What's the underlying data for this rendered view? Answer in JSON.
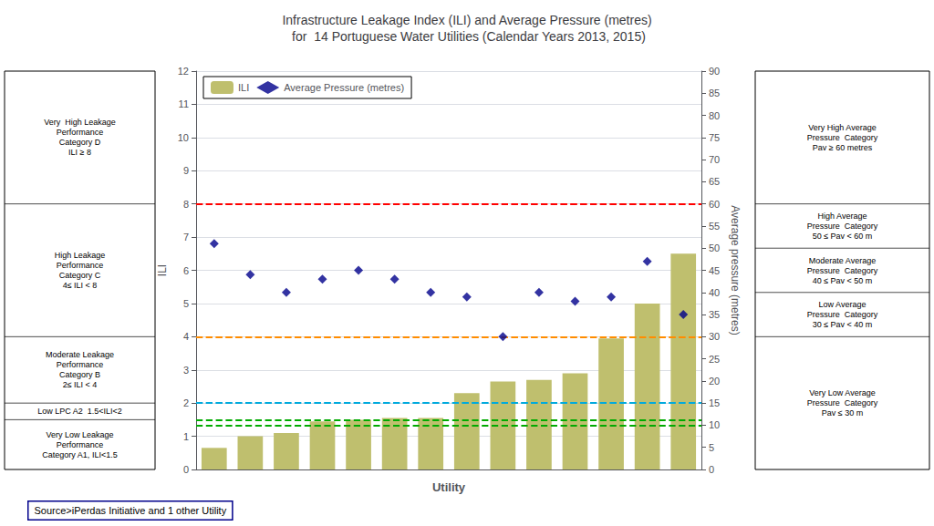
{
  "chart_data": {
    "type": "bar",
    "title": "Infrastructure Leakage Index (ILI) and Average Pressure (metres)\n for  14 Portuguese Water Utilities (Calendar Years 2013, 2015)",
    "x_label": "Utility",
    "y_label": "ILI",
    "y2_label": "Average pressure (metres)",
    "categories": [
      null,
      null,
      null,
      null,
      null,
      null,
      null,
      null,
      null,
      null,
      null,
      null,
      null,
      null
    ],
    "series": [
      {
        "name": "ILI",
        "type": "bar",
        "color": "#bfbf6e",
        "values": [
          0.65,
          1.0,
          1.1,
          1.45,
          1.5,
          1.55,
          1.55,
          2.3,
          2.65,
          2.7,
          2.9,
          3.95,
          5.0,
          6.5
        ]
      },
      {
        "name": "Average Pressure (metres)",
        "type": "scatter",
        "marker": "diamond",
        "color": "#00008b",
        "axis": "y2",
        "values": [
          51,
          44,
          40,
          43,
          45,
          43,
          40,
          39,
          30,
          40,
          38,
          39,
          47,
          35
        ]
      }
    ],
    "ylim": [
      0,
      12
    ],
    "yticks": [
      0,
      1,
      2,
      3,
      4,
      5,
      6,
      7,
      8,
      9,
      10,
      11,
      12
    ],
    "y2lim": [
      0,
      90
    ],
    "y2ticks": [
      0,
      5,
      10,
      15,
      20,
      25,
      30,
      35,
      40,
      45,
      50,
      55,
      60,
      65,
      70,
      75,
      80,
      85,
      90
    ],
    "hlines": [
      {
        "value": 8.0,
        "color": "#ff0000",
        "line_style": "dashed"
      },
      {
        "value": 4.0,
        "color": "#ff8c00",
        "line_style": "dashed"
      },
      {
        "value": 2.0,
        "color": "#00aadd",
        "line_style": "dashed"
      },
      {
        "value": 1.5,
        "color": "#00aa00",
        "line_style": "dashed"
      },
      {
        "value": 60,
        "color": "#ff0000",
        "line_style": "dashed",
        "axis": "y2"
      },
      {
        "value": 30,
        "color": "#ff8c00",
        "line_style": "dashed",
        "axis": "y2"
      },
      {
        "value": 15,
        "color": "#00aadd",
        "line_style": "dashed",
        "axis": "y2"
      },
      {
        "value": 10,
        "color": "#00aa00",
        "line_style": "dashed",
        "axis": "y2"
      }
    ],
    "left_panel": {
      "axis": "y",
      "texts": [
        {
          "text": "Very  High Leakage\nPerformance\nCategory D\nILI ≥ 8",
          "range": [
            8,
            12
          ]
        },
        {
          "text": "High Leakage\nPerformance\nCategory C\n4≤ ILI < 8",
          "range": [
            4,
            8
          ]
        },
        {
          "text": "Moderate Leakage\nPerformance\nCategory B\n2≤ ILI < 4",
          "range": [
            2,
            4
          ]
        },
        {
          "text": "Low LPC A2  1.5<ILI<2",
          "range": [
            1.5,
            2
          ]
        },
        {
          "text": "Very Low Leakage\nPerformance\nCategory A1, ILI<1.5",
          "range": [
            0,
            1.5
          ]
        }
      ]
    },
    "right_panel": {
      "axis": "y2",
      "texts": [
        {
          "text": "Very High Average\nPressure  Category\nPav ≥ 60 metres",
          "range": [
            60,
            90
          ]
        },
        {
          "text": "High Average\nPressure  Category\n50 ≤ Pav < 60 m",
          "range": [
            50,
            60
          ]
        },
        {
          "text": "Moderate Average\nPressure  Category\n40 ≤ Pav < 50 m",
          "range": [
            40,
            50
          ]
        },
        {
          "text": "Low Average\nPressure  Category\n30 ≤ Pav < 40 m",
          "range": [
            30,
            40
          ]
        },
        {
          "text": "Very Low Average\nPressure  Category\nPav ≤ 30 m",
          "range": [
            0,
            30
          ]
        }
      ]
    },
    "source": "Source>iPerdas Initiative and 1 other Utility",
    "legend": "upper left",
    "grid": true
  }
}
